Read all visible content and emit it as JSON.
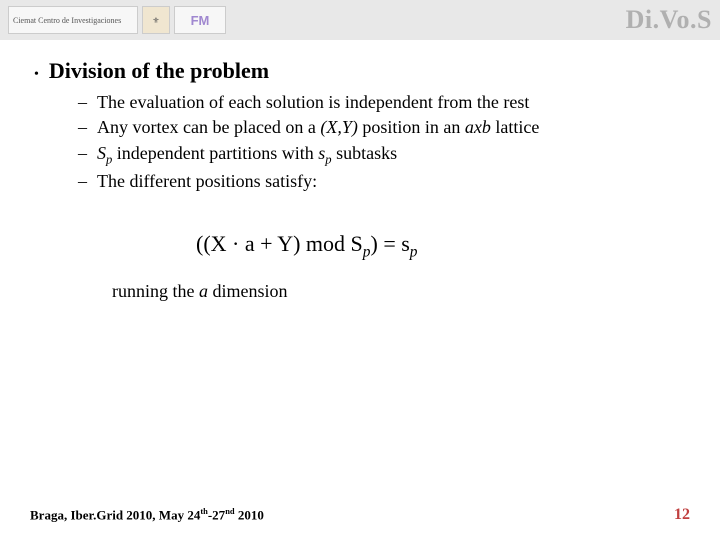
{
  "header": {
    "logo_ciemat_text": "Ciemat  Centro de Investigaciones",
    "logo_crest_text": "⚜",
    "logo_fm_text": "FM",
    "title": "Di.Vo.S",
    "bar_bg": "#e8e8e8",
    "title_color": "#b0b0b0"
  },
  "body": {
    "bullet1": "Division of the problem",
    "sub1": "The evaluation of each solution is independent from the rest",
    "sub2_pre": "Any vortex can be placed on a ",
    "sub2_xy": "(X,Y)",
    "sub2_mid": " position in an ",
    "sub2_axb": "axb",
    "sub2_post": " lattice",
    "sub3_S": "S",
    "sub3_p1": "p",
    "sub3_mid": " independent partitions with ",
    "sub3_s": "s",
    "sub3_p2": "p",
    "sub3_post": " subtasks",
    "sub4": "The different positions satisfy:",
    "formula": "((X · a + Y) mod S",
    "formula_p1": "p",
    "formula_mid": ") = s",
    "formula_p2": "p",
    "under_pre": "running the ",
    "under_a": "a",
    "under_post": " dimension"
  },
  "footer": {
    "left_pre": "Braga, Iber.Grid 2010, May 24",
    "left_sup1": "th",
    "left_mid": "-27",
    "left_sup2": "nd",
    "left_post": " 2010",
    "page": "12",
    "page_color": "#c04040"
  }
}
